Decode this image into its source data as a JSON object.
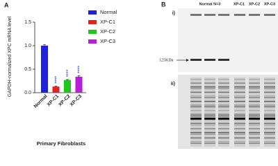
{
  "chart_data": {
    "type": "bar",
    "panel_label": "A",
    "y_label": "GAPDH-normalized XPC mRNA level",
    "x_label": "Primary Fibroblasts",
    "categories": [
      "Normal",
      "XP-C1",
      "XP-C2",
      "XP-C3"
    ],
    "values": [
      1.0,
      0.13,
      0.27,
      0.34
    ],
    "errors": [
      0.02,
      0.01,
      0.01,
      0.02
    ],
    "colors": [
      "#1f1fe0",
      "#e8201c",
      "#22c41f",
      "#b81fd6"
    ],
    "significance": [
      null,
      "****",
      "****",
      "****"
    ],
    "ylim": [
      0,
      1.5
    ],
    "yticks": [
      {
        "value": 0,
        "label": "0.0"
      },
      {
        "value": 0.5,
        "label": "0.5"
      },
      {
        "value": 1.0,
        "label": "1.0"
      },
      {
        "value": 1.5,
        "label": "1.5"
      }
    ],
    "legend": "upper right"
  },
  "blot": {
    "panel_label": "B",
    "part_i": "i)",
    "part_ii": "ii)",
    "lane_groups": [
      "Normal N=3",
      "XP-C1",
      "XP-C2",
      "XP-C3"
    ],
    "marker": "125KDa"
  }
}
